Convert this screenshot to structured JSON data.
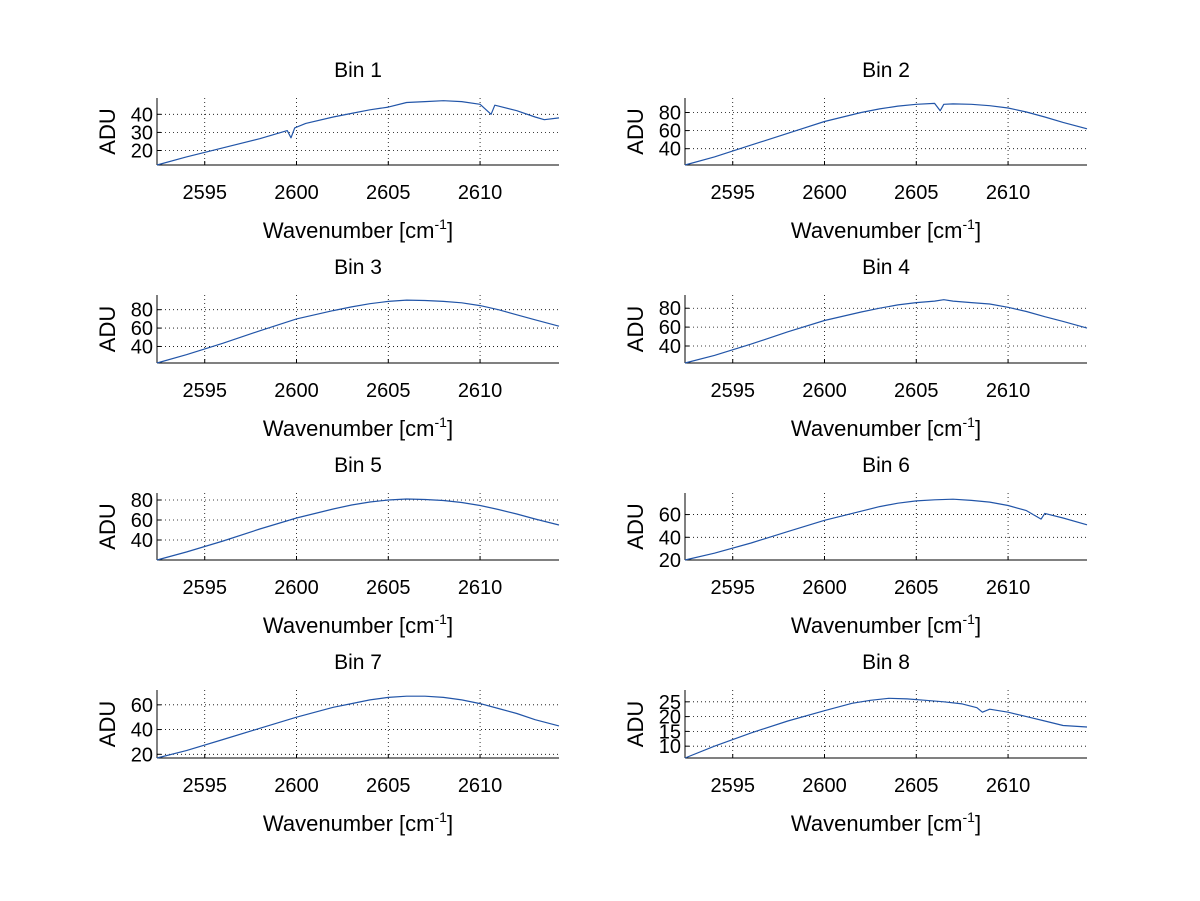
{
  "chart_data": [
    {
      "type": "line",
      "title": "Bin 1",
      "xlabel": "Wavenumber",
      "xlabel_unit": "cm",
      "xlabel_exp": "-1",
      "ylabel": "ADU",
      "xlim": [
        2592.4,
        2614.3
      ],
      "ylim": [
        12,
        49
      ],
      "xticks": [
        2595,
        2600,
        2605,
        2610
      ],
      "yticks": [
        20,
        30,
        40
      ],
      "grid": true,
      "color": "#2255a8",
      "x": [
        2592.4,
        2594,
        2596,
        2598,
        2599.5,
        2599.7,
        2599.9,
        2600.5,
        2602,
        2603,
        2604,
        2605,
        2606,
        2607,
        2608,
        2609,
        2610,
        2610.6,
        2610.8,
        2611,
        2612,
        2613,
        2613.5,
        2614.3
      ],
      "y": [
        12,
        16.5,
        21.5,
        26.5,
        31,
        27,
        32.5,
        35,
        38.5,
        40.5,
        42.5,
        44,
        46.5,
        47,
        47.5,
        47,
        45.5,
        40,
        45,
        44.5,
        42,
        38.5,
        37,
        38
      ]
    },
    {
      "type": "line",
      "title": "Bin 2",
      "xlabel": "Wavenumber",
      "xlabel_unit": "cm",
      "xlabel_exp": "-1",
      "ylabel": "ADU",
      "xlim": [
        2592.4,
        2614.3
      ],
      "ylim": [
        22,
        96
      ],
      "xticks": [
        2595,
        2600,
        2605,
        2610
      ],
      "yticks": [
        40,
        60,
        80
      ],
      "grid": true,
      "color": "#2255a8",
      "x": [
        2592.4,
        2594,
        2596,
        2598,
        2600,
        2602,
        2603,
        2604,
        2605,
        2606,
        2606.3,
        2606.5,
        2607,
        2608,
        2609,
        2610,
        2611,
        2612,
        2613,
        2614.3
      ],
      "y": [
        22,
        31,
        44,
        57,
        70,
        80,
        84,
        87,
        89,
        90,
        82,
        89,
        89.5,
        89,
        87.5,
        85,
        80.5,
        75,
        69,
        62
      ]
    },
    {
      "type": "line",
      "title": "Bin 3",
      "xlabel": "Wavenumber",
      "xlabel_unit": "cm",
      "xlabel_exp": "-1",
      "ylabel": "ADU",
      "xlim": [
        2592.4,
        2614.3
      ],
      "ylim": [
        22,
        96
      ],
      "xticks": [
        2595,
        2600,
        2605,
        2610
      ],
      "yticks": [
        40,
        60,
        80
      ],
      "grid": true,
      "color": "#2255a8",
      "x": [
        2592.4,
        2594,
        2596,
        2598,
        2600,
        2602,
        2603,
        2604,
        2605,
        2606,
        2607,
        2608,
        2609,
        2610,
        2611,
        2612,
        2613,
        2614.3
      ],
      "y": [
        22,
        31,
        43.5,
        57,
        70,
        79,
        83,
        86.5,
        89,
        90.5,
        90,
        89,
        87.5,
        84.5,
        80,
        74.5,
        69,
        62
      ]
    },
    {
      "type": "line",
      "title": "Bin 4",
      "xlabel": "Wavenumber",
      "xlabel_unit": "cm",
      "xlabel_exp": "-1",
      "ylabel": "ADU",
      "xlim": [
        2592.4,
        2614.3
      ],
      "ylim": [
        22,
        94
      ],
      "xticks": [
        2595,
        2600,
        2605,
        2610
      ],
      "yticks": [
        40,
        60,
        80
      ],
      "grid": true,
      "color": "#2255a8",
      "x": [
        2592.4,
        2594,
        2596,
        2598,
        2600,
        2602,
        2603,
        2604,
        2605,
        2606,
        2606.5,
        2607,
        2608,
        2609,
        2610,
        2611,
        2612,
        2613,
        2614.3
      ],
      "y": [
        22,
        30,
        42,
        55,
        67,
        76,
        80,
        83.5,
        86,
        87.5,
        89,
        87.5,
        86,
        84.5,
        81,
        76.5,
        71,
        66,
        59
      ]
    },
    {
      "type": "line",
      "title": "Bin 5",
      "xlabel": "Wavenumber",
      "xlabel_unit": "cm",
      "xlabel_exp": "-1",
      "ylabel": "ADU",
      "xlim": [
        2592.4,
        2614.3
      ],
      "ylim": [
        20,
        87
      ],
      "xticks": [
        2595,
        2600,
        2605,
        2610
      ],
      "yticks": [
        40,
        60,
        80
      ],
      "grid": true,
      "color": "#2255a8",
      "x": [
        2592.4,
        2594,
        2596,
        2598,
        2600,
        2602,
        2603,
        2604,
        2605,
        2606,
        2607,
        2608,
        2609,
        2610,
        2611,
        2612,
        2613,
        2614.3
      ],
      "y": [
        20,
        28,
        39,
        51,
        62,
        71,
        75,
        78,
        80,
        81,
        80.5,
        79.5,
        77.5,
        74.5,
        70.5,
        66,
        61,
        55
      ]
    },
    {
      "type": "line",
      "title": "Bin 6",
      "xlabel": "Wavenumber",
      "xlabel_unit": "cm",
      "xlabel_exp": "-1",
      "ylabel": "ADU",
      "xlim": [
        2592.4,
        2614.3
      ],
      "ylim": [
        20,
        79
      ],
      "xticks": [
        2595,
        2600,
        2605,
        2610
      ],
      "yticks": [
        20,
        40,
        60
      ],
      "grid": true,
      "color": "#2255a8",
      "x": [
        2592.4,
        2594,
        2596,
        2598,
        2600,
        2602,
        2603,
        2604,
        2605,
        2606,
        2607,
        2608,
        2609,
        2610,
        2611,
        2611.8,
        2612,
        2613,
        2614.3
      ],
      "y": [
        20,
        26,
        35,
        45,
        55,
        63,
        67,
        70,
        72,
        73,
        73.5,
        72.5,
        71,
        68,
        63.5,
        56,
        61,
        57,
        51
      ]
    },
    {
      "type": "line",
      "title": "Bin 7",
      "xlabel": "Wavenumber",
      "xlabel_unit": "cm",
      "xlabel_exp": "-1",
      "ylabel": "ADU",
      "xlim": [
        2592.4,
        2614.3
      ],
      "ylim": [
        17,
        72
      ],
      "xticks": [
        2595,
        2600,
        2605,
        2610
      ],
      "yticks": [
        20,
        40,
        60
      ],
      "grid": true,
      "color": "#2255a8",
      "x": [
        2592.4,
        2594,
        2596,
        2598,
        2600,
        2602,
        2603,
        2604,
        2605,
        2606,
        2607,
        2608,
        2609,
        2610,
        2611,
        2612,
        2613,
        2614.3
      ],
      "y": [
        17,
        23,
        32,
        41,
        50,
        58,
        61,
        64,
        66,
        67,
        67,
        66,
        64,
        61,
        57,
        53,
        48,
        43
      ]
    },
    {
      "type": "line",
      "title": "Bin 8",
      "xlabel": "Wavenumber",
      "xlabel_unit": "cm",
      "xlabel_exp": "-1",
      "ylabel": "ADU",
      "xlim": [
        2592.4,
        2614.3
      ],
      "ylim": [
        6,
        29
      ],
      "xticks": [
        2595,
        2600,
        2605,
        2610
      ],
      "yticks": [
        10,
        15,
        20,
        25
      ],
      "grid": true,
      "color": "#2255a8",
      "x": [
        2592.4,
        2594,
        2596,
        2598,
        2600,
        2601.5,
        2602.5,
        2603.5,
        2604.5,
        2605.5,
        2606.5,
        2607.5,
        2608.3,
        2608.6,
        2609,
        2610,
        2611,
        2612,
        2613,
        2614.3
      ],
      "y": [
        6,
        10,
        14.5,
        18.5,
        22,
        24.5,
        25.5,
        26.2,
        26,
        25.5,
        25,
        24.3,
        23,
        21.5,
        22.5,
        21.5,
        20,
        18.5,
        17,
        16.5
      ]
    }
  ]
}
